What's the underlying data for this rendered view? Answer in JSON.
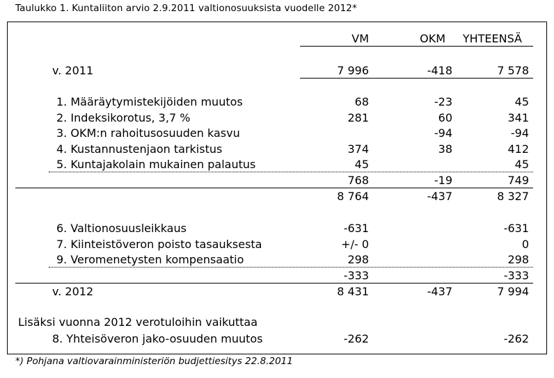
{
  "caption": "Taulukko 1. Kuntaliiton arvio 2.9.2011 valtionosuuksista vuodelle 2012*",
  "footnote": "*) Pohjana valtiovarainministeriön budjettiesitys 22.8.2011",
  "headers": {
    "vm": "VM",
    "okm": "OKM",
    "total": "YHTEENSÄ"
  },
  "rows": [
    {
      "label": "v. 2011",
      "vm": "7 996",
      "okm": "-418",
      "total": "7 578"
    },
    {
      "label": "1. Määräytymistekijöiden muutos",
      "vm": "68",
      "okm": "-23",
      "total": "45"
    },
    {
      "label": "2. Indeksikorotus, 3,7 %",
      "vm": "281",
      "okm": "60",
      "total": "341"
    },
    {
      "label": "3. OKM:n rahoitusosuuden kasvu",
      "vm": "",
      "okm": "-94",
      "total": "-94"
    },
    {
      "label": "4. Kustannustenjaon tarkistus",
      "vm": "374",
      "okm": "38",
      "total": "412"
    },
    {
      "label": "5. Kuntajakolain mukainen palautus",
      "vm": "45",
      "okm": "",
      "total": "45"
    },
    {
      "label": "",
      "vm": "768",
      "okm": "-19",
      "total": "749"
    },
    {
      "label": "",
      "vm": "8 764",
      "okm": "-437",
      "total": "8 327"
    },
    {
      "label": "6. Valtionosuusleikkaus",
      "vm": "-631",
      "okm": "",
      "total": "-631"
    },
    {
      "label": "7. Kiinteistöveron poisto tasauksesta",
      "vm": "+/- 0",
      "okm": "",
      "total": "0"
    },
    {
      "label": "9. Veromenetysten kompensaatio",
      "vm": "298",
      "okm": "",
      "total": "298"
    },
    {
      "label": "",
      "vm": "-333",
      "okm": "",
      "total": "-333"
    },
    {
      "label": "v. 2012",
      "vm": "8 431",
      "okm": "-437",
      "total": "7 994"
    },
    {
      "label": "Lisäksi vuonna 2012 verotuloihin vaikuttaa",
      "vm": "",
      "okm": "",
      "total": ""
    },
    {
      "label": "8. Yhteisöveron jako-osuuden muutos",
      "vm": "-262",
      "okm": "",
      "total": "-262"
    }
  ]
}
